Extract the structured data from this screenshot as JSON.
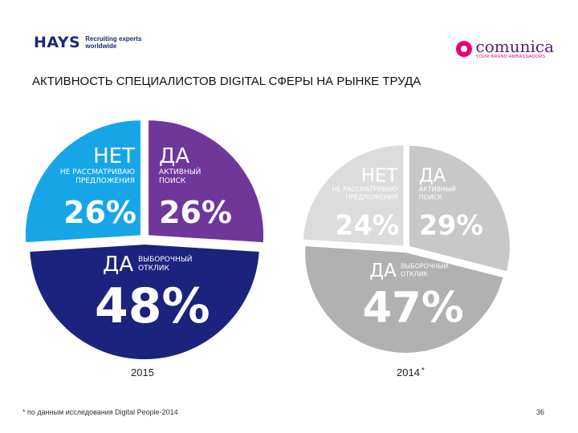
{
  "logos": {
    "hays_name": "HAYS",
    "hays_tagline_1": "Recruiting experts",
    "hays_tagline_2": "worldwide",
    "comunica_name": "comunica",
    "comunica_sub": "YOUR BRAND AMBASSADORS"
  },
  "title": "АКТИВНОСТЬ СПЕЦИАЛИСТОВ DIGITAL СФЕРЫ НА РЫНКЕ ТРУДА",
  "chart_data": [
    {
      "type": "pie",
      "title": "2015",
      "slices": [
        {
          "key": "no",
          "head": "НЕТ",
          "sub": [
            "НЕ РАССМАТРИВАЮ",
            "ПРЕДЛОЖЕНИЯ"
          ],
          "value": 26,
          "label": "26%",
          "color": "#16a6e8"
        },
        {
          "key": "active",
          "head": "ДА",
          "sub": [
            "АКТИВНЫЙ",
            "ПОИСК"
          ],
          "value": 26,
          "label": "26%",
          "color": "#70379a"
        },
        {
          "key": "selective",
          "head": "ДА",
          "sub": [
            "ВЫБОРОЧНЫЙ",
            "ОТКЛИК"
          ],
          "value": 48,
          "label": "48%",
          "color": "#1a237e"
        }
      ]
    },
    {
      "type": "pie",
      "title": "2014",
      "title_mark": "*",
      "slices": [
        {
          "key": "no",
          "head": "НЕТ",
          "sub": [
            "НЕ РАССМАТРИВАЮ",
            "ПРЕДЛОЖЕНИЯ"
          ],
          "value": 24,
          "label": "24%",
          "color": "#dcdcdc"
        },
        {
          "key": "active",
          "head": "ДА",
          "sub": [
            "АКТИВНЫЙ",
            "ПОИСК"
          ],
          "value": 29,
          "label": "29%",
          "color": "#c8c8c8"
        },
        {
          "key": "selective",
          "head": "ДА",
          "sub": [
            "ВЫБОРОЧНЫЙ",
            "ОТКЛИК"
          ],
          "value": 47,
          "label": "47%",
          "color": "#b1b1b1"
        }
      ]
    }
  ],
  "footnote": "* по данным исследования Digital People-2014",
  "page_number": "36"
}
